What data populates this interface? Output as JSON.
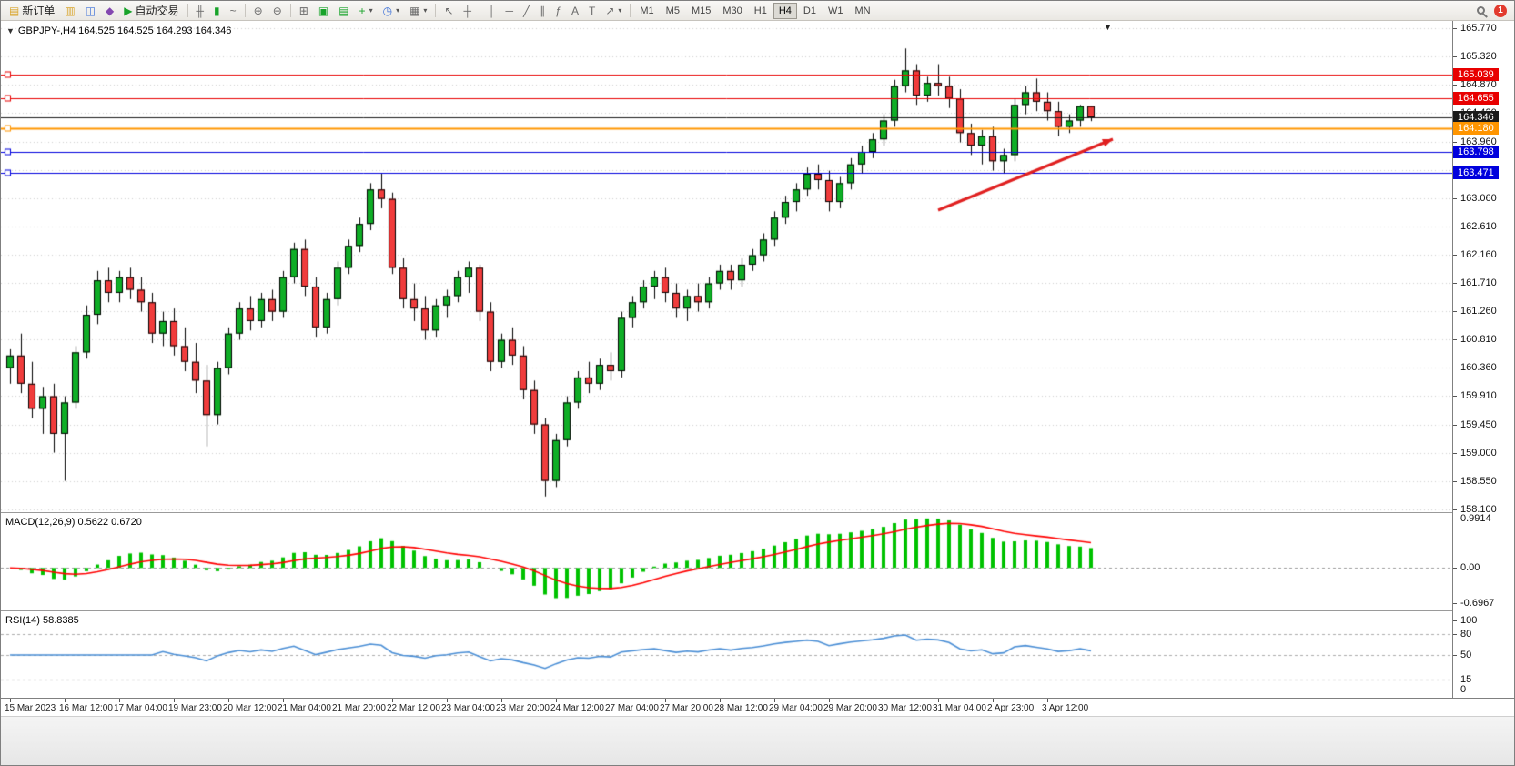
{
  "toolbar": {
    "new_order_label": "新订单",
    "auto_trading_label": "自动交易",
    "timeframes": [
      "M1",
      "M5",
      "M15",
      "M30",
      "H1",
      "H4",
      "D1",
      "W1",
      "MN"
    ],
    "selected_timeframe": "H4",
    "badge_count": "1"
  },
  "icons": {
    "new_order": "▤",
    "charts_window": "▥",
    "data_window": "◫",
    "navigator": "◆",
    "auto_trading": "▶",
    "bar_chart": "╫",
    "candlestick_chart": "▮",
    "line_chart": "~",
    "zoom_in": "⊕",
    "zoom_out": "⊖",
    "tile_windows": "⊞",
    "new_chart": "▣",
    "profiles": "▤",
    "indicators": "+",
    "periods_clock": "◷",
    "templates": "▦",
    "dropdown_arrow": "▾",
    "cursor": "↖",
    "crosshair": "┼",
    "vertical_line": "│",
    "horizontal_line": "─",
    "trend_line": "╱",
    "channel": "∥",
    "fibonacci": "ƒ",
    "text": "A",
    "text_label": "T",
    "arrow_tool": "↗",
    "one_click_trading": "▼",
    "chart_shift_marker": "▼"
  },
  "chart_data": {
    "type": "candlestick",
    "title": "GBPJPY-,H4 164.525 164.525 164.293 164.346",
    "symbol": "GBPJPY-",
    "timeframe": "H4",
    "ohlc": {
      "open": "164.525",
      "high": "164.525",
      "low": "164.293",
      "close": "164.346"
    },
    "price_axis": {
      "min": 158.05,
      "max": 165.89,
      "grid": [
        165.77,
        165.32,
        164.87,
        164.42,
        163.96,
        163.51,
        163.06,
        162.61,
        162.16,
        161.71,
        161.26,
        160.81,
        160.36,
        159.91,
        159.45,
        159.0,
        158.55,
        158.1
      ]
    },
    "hlines": [
      {
        "price": 165.039,
        "label": "165.039",
        "color": "#e80000",
        "width": 1,
        "handle": true
      },
      {
        "price": 164.655,
        "label": "164.655",
        "color": "#e80000",
        "width": 1,
        "handle": true
      },
      {
        "price": 164.346,
        "label": "164.346",
        "color": "#1a1a1a",
        "width": 1,
        "handle": false
      },
      {
        "price": 164.18,
        "label": "164.180",
        "color": "#ff9500",
        "width": 2,
        "handle": true
      },
      {
        "price": 163.798,
        "label": "163.798",
        "color": "#0000dd",
        "width": 1,
        "handle": true
      },
      {
        "price": 163.471,
        "label": "163.471",
        "color": "#0000dd",
        "width": 1,
        "handle": true
      }
    ],
    "candles": [
      [
        160.35,
        160.65,
        160.1,
        160.55
      ],
      [
        160.55,
        160.9,
        159.95,
        160.1
      ],
      [
        160.1,
        160.45,
        159.55,
        159.7
      ],
      [
        159.7,
        160.05,
        159.3,
        159.9
      ],
      [
        159.9,
        160.1,
        159.0,
        159.3
      ],
      [
        159.3,
        159.9,
        158.55,
        159.8
      ],
      [
        159.8,
        160.7,
        159.7,
        160.6
      ],
      [
        160.6,
        161.35,
        160.5,
        161.2
      ],
      [
        161.2,
        161.9,
        161.05,
        161.75
      ],
      [
        161.75,
        161.95,
        161.4,
        161.55
      ],
      [
        161.55,
        161.9,
        161.4,
        161.8
      ],
      [
        161.8,
        161.95,
        161.45,
        161.6
      ],
      [
        161.6,
        161.8,
        161.25,
        161.4
      ],
      [
        161.4,
        161.55,
        160.75,
        160.9
      ],
      [
        160.9,
        161.25,
        160.7,
        161.1
      ],
      [
        161.1,
        161.3,
        160.55,
        160.7
      ],
      [
        160.7,
        161.0,
        160.3,
        160.45
      ],
      [
        160.45,
        160.75,
        159.95,
        160.15
      ],
      [
        160.15,
        160.4,
        159.1,
        159.6
      ],
      [
        159.6,
        160.45,
        159.45,
        160.35
      ],
      [
        160.35,
        161.0,
        160.25,
        160.9
      ],
      [
        160.9,
        161.4,
        160.8,
        161.3
      ],
      [
        161.3,
        161.5,
        160.95,
        161.1
      ],
      [
        161.1,
        161.55,
        161.0,
        161.45
      ],
      [
        161.45,
        161.6,
        161.1,
        161.25
      ],
      [
        161.25,
        161.9,
        161.15,
        161.8
      ],
      [
        161.8,
        162.35,
        161.7,
        162.25
      ],
      [
        162.25,
        162.4,
        161.5,
        161.65
      ],
      [
        161.65,
        161.8,
        160.85,
        161.0
      ],
      [
        161.0,
        161.55,
        160.9,
        161.45
      ],
      [
        161.45,
        162.05,
        161.35,
        161.95
      ],
      [
        161.95,
        162.4,
        161.85,
        162.3
      ],
      [
        162.3,
        162.75,
        162.2,
        162.65
      ],
      [
        162.65,
        163.3,
        162.55,
        163.2
      ],
      [
        163.2,
        163.45,
        162.9,
        163.05
      ],
      [
        163.05,
        163.15,
        161.85,
        161.95
      ],
      [
        161.95,
        162.1,
        161.3,
        161.45
      ],
      [
        161.45,
        161.7,
        161.1,
        161.3
      ],
      [
        161.3,
        161.5,
        160.8,
        160.95
      ],
      [
        160.95,
        161.45,
        160.85,
        161.35
      ],
      [
        161.35,
        161.6,
        161.15,
        161.5
      ],
      [
        161.5,
        161.9,
        161.4,
        161.8
      ],
      [
        161.8,
        162.05,
        161.55,
        161.95
      ],
      [
        161.95,
        162.0,
        161.1,
        161.25
      ],
      [
        161.25,
        161.4,
        160.3,
        160.45
      ],
      [
        160.45,
        160.9,
        160.35,
        160.8
      ],
      [
        160.8,
        161.0,
        160.4,
        160.55
      ],
      [
        160.55,
        160.7,
        159.85,
        160.0
      ],
      [
        160.0,
        160.15,
        159.3,
        159.45
      ],
      [
        159.45,
        159.55,
        158.3,
        158.55
      ],
      [
        158.55,
        159.3,
        158.45,
        159.2
      ],
      [
        159.2,
        159.9,
        159.1,
        159.8
      ],
      [
        159.8,
        160.3,
        159.7,
        160.2
      ],
      [
        160.2,
        160.45,
        159.95,
        160.1
      ],
      [
        160.1,
        160.5,
        160.0,
        160.4
      ],
      [
        160.4,
        160.6,
        160.15,
        160.3
      ],
      [
        160.3,
        161.25,
        160.2,
        161.15
      ],
      [
        161.15,
        161.5,
        161.0,
        161.4
      ],
      [
        161.4,
        161.75,
        161.3,
        161.65
      ],
      [
        161.65,
        161.9,
        161.45,
        161.8
      ],
      [
        161.8,
        161.95,
        161.4,
        161.55
      ],
      [
        161.55,
        161.7,
        161.15,
        161.3
      ],
      [
        161.3,
        161.6,
        161.1,
        161.5
      ],
      [
        161.5,
        161.7,
        161.25,
        161.4
      ],
      [
        161.4,
        161.8,
        161.3,
        161.7
      ],
      [
        161.7,
        162.0,
        161.6,
        161.9
      ],
      [
        161.9,
        162.0,
        161.6,
        161.75
      ],
      [
        161.75,
        162.1,
        161.65,
        162.0
      ],
      [
        162.0,
        162.25,
        161.9,
        162.15
      ],
      [
        162.15,
        162.5,
        162.05,
        162.4
      ],
      [
        162.4,
        162.85,
        162.3,
        162.75
      ],
      [
        162.75,
        163.1,
        162.65,
        163.0
      ],
      [
        163.0,
        163.3,
        162.85,
        163.2
      ],
      [
        163.2,
        163.55,
        163.1,
        163.45
      ],
      [
        163.45,
        163.6,
        163.2,
        163.35
      ],
      [
        163.35,
        163.5,
        162.85,
        163.0
      ],
      [
        163.0,
        163.4,
        162.9,
        163.3
      ],
      [
        163.3,
        163.7,
        163.2,
        163.6
      ],
      [
        163.6,
        163.9,
        163.45,
        163.8
      ],
      [
        163.8,
        164.1,
        163.7,
        164.0
      ],
      [
        164.0,
        164.4,
        163.9,
        164.3
      ],
      [
        164.3,
        164.95,
        164.2,
        164.85
      ],
      [
        164.85,
        165.45,
        164.75,
        165.1
      ],
      [
        165.1,
        165.2,
        164.55,
        164.7
      ],
      [
        164.7,
        165.0,
        164.6,
        164.9
      ],
      [
        164.9,
        165.2,
        164.7,
        164.85
      ],
      [
        164.85,
        165.0,
        164.5,
        164.65
      ],
      [
        164.65,
        164.8,
        163.95,
        164.1
      ],
      [
        164.1,
        164.25,
        163.75,
        163.9
      ],
      [
        163.9,
        164.15,
        163.6,
        164.05
      ],
      [
        164.05,
        164.2,
        163.5,
        163.65
      ],
      [
        163.65,
        163.85,
        163.45,
        163.75
      ],
      [
        163.75,
        164.65,
        163.65,
        164.55
      ],
      [
        164.55,
        164.85,
        164.4,
        164.75
      ],
      [
        164.75,
        164.97,
        164.45,
        164.6
      ],
      [
        164.6,
        164.75,
        164.3,
        164.45
      ],
      [
        164.45,
        164.6,
        164.05,
        164.2
      ],
      [
        164.2,
        164.4,
        164.1,
        164.3
      ],
      [
        164.3,
        164.55,
        164.2,
        164.53
      ],
      [
        164.53,
        164.53,
        164.29,
        164.35
      ]
    ],
    "time_labels": [
      "15 Mar 2023",
      "16 Mar 12:00",
      "17 Mar 04:00",
      "19 Mar 23:00",
      "20 Mar 12:00",
      "21 Mar 04:00",
      "21 Mar 20:00",
      "22 Mar 12:00",
      "23 Mar 04:00",
      "23 Mar 20:00",
      "24 Mar 12:00",
      "27 Mar 04:00",
      "27 Mar 20:00",
      "28 Mar 12:00",
      "29 Mar 04:00",
      "29 Mar 20:00",
      "30 Mar 12:00",
      "31 Mar 04:00",
      "2 Apr 23:00",
      "3 Apr 12:00"
    ],
    "macd": {
      "label": "MACD(12,26,9) 0.5622 0.6720",
      "params": [
        12,
        26,
        9
      ],
      "values_text": [
        "0.5622",
        "0.6720"
      ],
      "peak": 0.9914,
      "axis": [
        {
          "value": 0.9914,
          "label": "0.9914"
        },
        {
          "value": 0,
          "label": "0.00"
        },
        {
          "value": -0.6967,
          "label": "-0.6967"
        }
      ]
    },
    "rsi": {
      "label": "RSI(14) 58.8385",
      "period": 14,
      "value_text": "58.8385",
      "levels": [
        100,
        80,
        50,
        15,
        0
      ],
      "dashed_levels": [
        80,
        50,
        15
      ]
    },
    "arrow": {
      "from": [
        1030,
        208
      ],
      "to": [
        1222,
        130
      ],
      "color": "#e02020"
    },
    "colors": {
      "background": "#ffffff",
      "grid": "#cfcfcf",
      "candle_up": "#0fae26",
      "candle_down": "#f03c3c",
      "candle_outline": "#000000",
      "macd_histogram": "#00c200",
      "macd_signal": "#ff0000",
      "rsi_line": "#4a8ed5",
      "level_line": "#aaaaaa"
    }
  }
}
